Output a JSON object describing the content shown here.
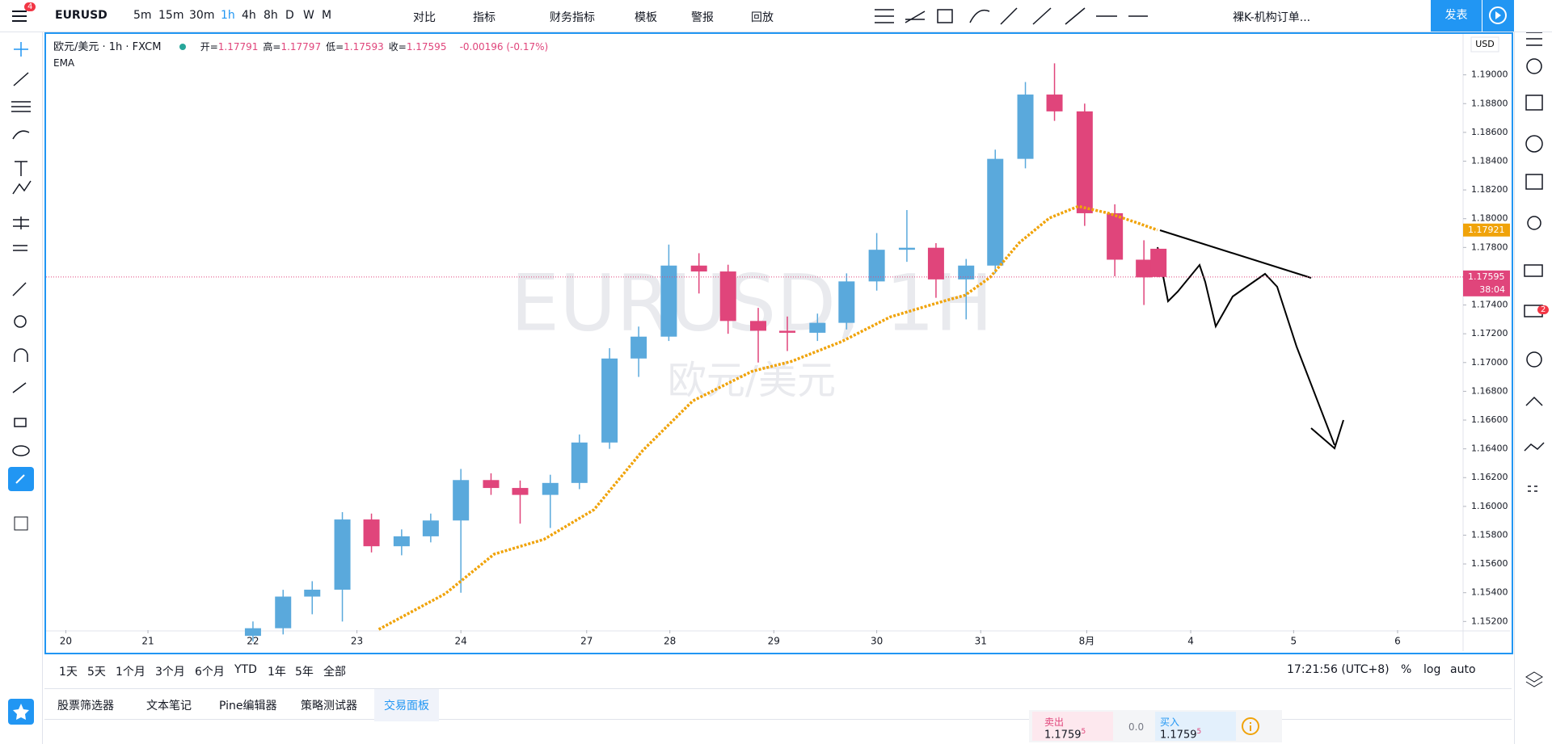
{
  "toolbar": {
    "badge": "4",
    "symbol": "EURUSD",
    "intervals": [
      "5m",
      "15m",
      "30m",
      "1h",
      "4h",
      "8h",
      "D",
      "W",
      "M"
    ],
    "buttons": [
      "对比",
      "指标",
      "财务指标",
      "模板",
      "警报",
      "回放"
    ],
    "layout": "裸K-机构订单...",
    "publish": "发表"
  },
  "chart_header": {
    "title": "欧元/美元 · 1h · FXCM",
    "ohlc": [
      {
        "label": "开=",
        "value": "1.17791"
      },
      {
        "label": "高=",
        "value": "1.17797"
      },
      {
        "label": "低=",
        "value": "1.17593"
      },
      {
        "label": "收=",
        "value": "1.17595"
      }
    ],
    "change": "-0.00196 (-0.17%)"
  },
  "watermark": {
    "symbol": "EURUSD, 1H",
    "name": "欧元/美元"
  },
  "chart_data": {
    "type": "candlestick",
    "currency": "USD",
    "up_color": "#5aa9dc",
    "down_color": "#e0457b",
    "x": [
      1.8,
      2.09,
      2.37,
      2.66,
      2.94,
      3.23,
      3.51,
      3.8,
      4.09,
      4.37,
      4.66,
      4.94,
      5.23,
      5.51,
      5.8,
      6.09,
      6.37,
      6.66,
      6.94,
      7.23,
      7.51,
      7.8,
      8.09,
      8.37,
      8.66,
      8.94,
      9.23,
      9.51,
      9.8,
      10.09,
      10.37,
      10.51
    ],
    "open": [
      1.151,
      1.15153,
      1.15373,
      1.15421,
      1.15909,
      1.15723,
      1.15792,
      1.15902,
      1.16183,
      1.16128,
      1.1608,
      1.16163,
      1.16444,
      1.17028,
      1.1718,
      1.17674,
      1.17633,
      1.17289,
      1.17221,
      1.17207,
      1.17276,
      1.17564,
      1.17784,
      1.17798,
      1.17578,
      1.17674,
      1.18416,
      1.18863,
      1.18746,
      1.18038,
      1.17715,
      1.17791
    ],
    "high": [
      1.152,
      1.1542,
      1.1548,
      1.1596,
      1.1595,
      1.1584,
      1.1595,
      1.1626,
      1.1623,
      1.1618,
      1.1622,
      1.165,
      1.171,
      1.1725,
      1.1782,
      1.1776,
      1.1768,
      1.1738,
      1.1732,
      1.1734,
      1.1762,
      1.179,
      1.1806,
      1.1783,
      1.1772,
      1.1848,
      1.1895,
      1.1908,
      1.188,
      1.181,
      1.1785,
      1.17797
    ],
    "low": [
      1.1506,
      1.1511,
      1.1525,
      1.152,
      1.1568,
      1.1566,
      1.1575,
      1.154,
      1.1608,
      1.1588,
      1.1585,
      1.1612,
      1.164,
      1.169,
      1.1715,
      1.1748,
      1.172,
      1.17,
      1.1708,
      1.1715,
      1.1723,
      1.175,
      1.177,
      1.1745,
      1.173,
      1.1762,
      1.1835,
      1.1868,
      1.1795,
      1.176,
      1.174,
      1.17593
    ],
    "close": [
      1.15153,
      1.15373,
      1.15421,
      1.15909,
      1.15723,
      1.15792,
      1.15902,
      1.16183,
      1.16128,
      1.1608,
      1.16163,
      1.16444,
      1.17028,
      1.1718,
      1.17674,
      1.17633,
      1.17289,
      1.17221,
      1.17207,
      1.17276,
      1.17564,
      1.17784,
      1.17798,
      1.17578,
      1.17674,
      1.18416,
      1.18863,
      1.18746,
      1.18038,
      1.17715,
      1.17592,
      1.17595
    ],
    "ema": {
      "name": "EMA",
      "color": "#f0a30a",
      "x": [
        3.01,
        3.65,
        4.12,
        4.6,
        5.08,
        5.55,
        6.03,
        6.6,
        6.98,
        7.46,
        7.93,
        8.41,
        8.65,
        8.89,
        9.17,
        9.46,
        9.74,
        10.03,
        10.31,
        10.5
      ],
      "values": [
        1.15145,
        1.15393,
        1.15668,
        1.15771,
        1.15977,
        1.16389,
        1.16733,
        1.16939,
        1.17008,
        1.17145,
        1.17317,
        1.1742,
        1.17468,
        1.17592,
        1.17832,
        1.18004,
        1.18086,
        1.18038,
        1.1797,
        1.17921
      ]
    },
    "last_ema_label": 1.17921,
    "last_price_label": 1.17595,
    "countdown": "38:04",
    "xlim": [
      -0.19,
      13.44
    ],
    "ylim": [
      1.1514,
      1.1929
    ],
    "xticks": [
      {
        "value": 0,
        "label": "20"
      },
      {
        "value": 0.79,
        "label": "21"
      },
      {
        "value": 1.8,
        "label": "22"
      },
      {
        "value": 2.8,
        "label": "23"
      },
      {
        "value": 3.8,
        "label": "24"
      },
      {
        "value": 5.01,
        "label": "27"
      },
      {
        "value": 5.81,
        "label": "28"
      },
      {
        "value": 6.81,
        "label": "29"
      },
      {
        "value": 7.8,
        "label": "30"
      },
      {
        "value": 8.8,
        "label": "31"
      },
      {
        "value": 9.82,
        "label": "8月"
      },
      {
        "value": 10.82,
        "label": "4"
      },
      {
        "value": 11.81,
        "label": "5"
      },
      {
        "value": 12.81,
        "label": "6"
      }
    ],
    "yticks": [
      {
        "value": 1.152,
        "label": "1.15200"
      },
      {
        "value": 1.154,
        "label": "1.15400"
      },
      {
        "value": 1.156,
        "label": "1.15600"
      },
      {
        "value": 1.158,
        "label": "1.15800"
      },
      {
        "value": 1.16,
        "label": "1.16000"
      },
      {
        "value": 1.162,
        "label": "1.16200"
      },
      {
        "value": 1.164,
        "label": "1.16400"
      },
      {
        "value": 1.166,
        "label": "1.16600"
      },
      {
        "value": 1.168,
        "label": "1.16800"
      },
      {
        "value": 1.17,
        "label": "1.17000"
      },
      {
        "value": 1.172,
        "label": "1.17200"
      },
      {
        "value": 1.174,
        "label": "1.17400"
      },
      {
        "value": 1.176,
        "label": "1.17600"
      },
      {
        "value": 1.178,
        "label": "1.17800"
      },
      {
        "value": 1.18,
        "label": "1.18000"
      },
      {
        "value": 1.182,
        "label": "1.18200"
      },
      {
        "value": 1.184,
        "label": "1.18400"
      },
      {
        "value": 1.186,
        "label": "1.18600"
      },
      {
        "value": 1.188,
        "label": "1.18800"
      },
      {
        "value": 1.19,
        "label": "1.19000"
      }
    ],
    "grid": false
  },
  "bottom": {
    "ranges": [
      "1天",
      "5天",
      "1个月",
      "3个月",
      "6个月",
      "YTD",
      "1年",
      "5年",
      "全部"
    ],
    "time": "17:21:56 (UTC+8)",
    "scale_options": [
      "%",
      "log",
      "auto"
    ],
    "tabs": [
      "股票筛选器",
      "文本笔记",
      "Pine编辑器",
      "策略测试器",
      "交易面板"
    ]
  },
  "trade": {
    "sell_label": "卖出",
    "sell_price": "1.1759",
    "sell_sup": "5",
    "spread": "0.0",
    "buy_label": "买入",
    "buy_price": "1.1759",
    "buy_sup": "5"
  },
  "right_badge": "2"
}
